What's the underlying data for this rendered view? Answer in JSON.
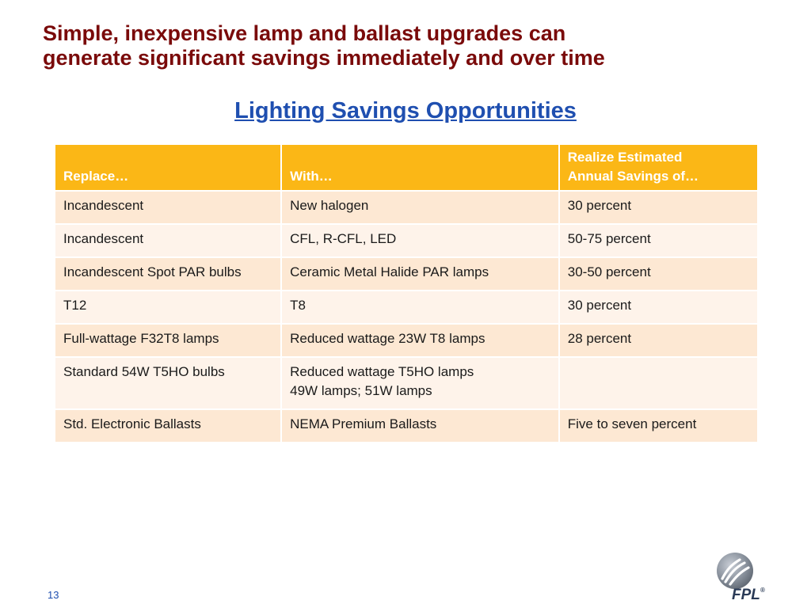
{
  "slide": {
    "title_line1": "Simple, inexpensive lamp and ballast upgrades can",
    "title_line2": "generate significant savings immediately and over time",
    "subtitle": "Lighting Savings Opportunities",
    "page_number": "13"
  },
  "table": {
    "headers": {
      "replace": "Replace…",
      "with": "With…",
      "savings_line1": "Realize Estimated",
      "savings_line2": "Annual Savings of…"
    },
    "rows": [
      {
        "replace": "Incandescent",
        "with": "New halogen",
        "with_line2": "",
        "savings": "30 percent"
      },
      {
        "replace": "Incandescent",
        "with": "CFL, R-CFL, LED",
        "with_line2": "",
        "savings": "50-75 percent"
      },
      {
        "replace": "Incandescent Spot PAR bulbs",
        "with": "Ceramic Metal Halide PAR lamps",
        "with_line2": "",
        "savings": "30-50  percent"
      },
      {
        "replace": "T12",
        "with": "T8",
        "with_line2": "",
        "savings": "30 percent"
      },
      {
        "replace": "Full-wattage F32T8 lamps",
        "with": "Reduced wattage 23W T8 lamps",
        "with_line2": "",
        "savings": "28 percent"
      },
      {
        "replace": "Standard 54W T5HO bulbs",
        "with": "Reduced wattage T5HO lamps",
        "with_line2": "49W lamps; 51W lamps",
        "savings": ""
      },
      {
        "replace": "Std. Electronic Ballasts",
        "with": "NEMA Premium Ballasts",
        "with_line2": "",
        "savings": "Five to seven percent"
      }
    ]
  },
  "logo": {
    "icon": "fpl-logo-icon",
    "text": "FPL",
    "registered": "®"
  },
  "colors": {
    "title": "#7a0a0a",
    "subtitle": "#1f4fb0",
    "header_bg": "#fbb716",
    "row_odd": "#fde8d3",
    "row_even": "#fef3ea"
  }
}
